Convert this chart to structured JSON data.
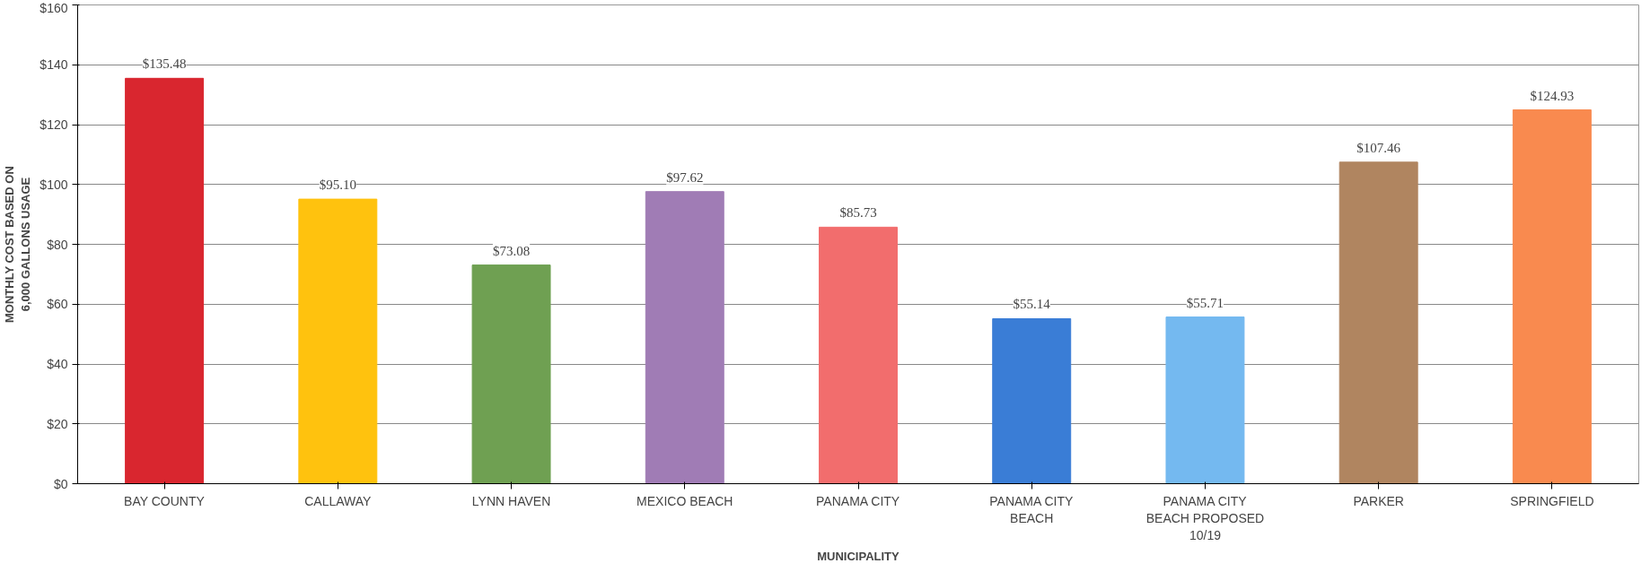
{
  "chart_data": {
    "type": "bar",
    "xlabel": "MUNICIPALITY",
    "ylabel": "MONTHLY COST BASED ON 6,000 GALLONS USAGE",
    "categories": [
      "BAY COUNTY",
      "CALLAWAY",
      "LYNN HAVEN",
      "MEXICO BEACH",
      "PANAMA CITY",
      "PANAMA CITY BEACH",
      "PANAMA CITY BEACH PROPOSED 10/19",
      "PARKER",
      "SPRINGFIELD"
    ],
    "values": [
      135.48,
      95.1,
      73.08,
      97.62,
      85.73,
      55.14,
      55.71,
      107.46,
      124.93
    ],
    "value_labels": [
      "$135.48",
      "$95.10",
      "$73.08",
      "$97.62",
      "$85.73",
      "$55.14",
      "$55.71",
      "$107.46",
      "$124.93"
    ],
    "colors": [
      "#d9262f",
      "#ffc20e",
      "#6fa052",
      "#a07cb5",
      "#f26d6d",
      "#3a7dd6",
      "#74b9f0",
      "#b08560",
      "#f98a4f"
    ],
    "ylim": [
      0,
      160
    ],
    "yticks": [
      {
        "value": 0,
        "label": "$0"
      },
      {
        "value": 20,
        "label": "$20"
      },
      {
        "value": 40,
        "label": "$40"
      },
      {
        "value": 60,
        "label": "$60"
      },
      {
        "value": 80,
        "label": "$80"
      },
      {
        "value": 100,
        "label": "$100"
      },
      {
        "value": 120,
        "label": "$120"
      },
      {
        "value": 140,
        "label": "$140"
      },
      {
        "value": 160,
        "label": "$160"
      }
    ],
    "grid": "y"
  }
}
